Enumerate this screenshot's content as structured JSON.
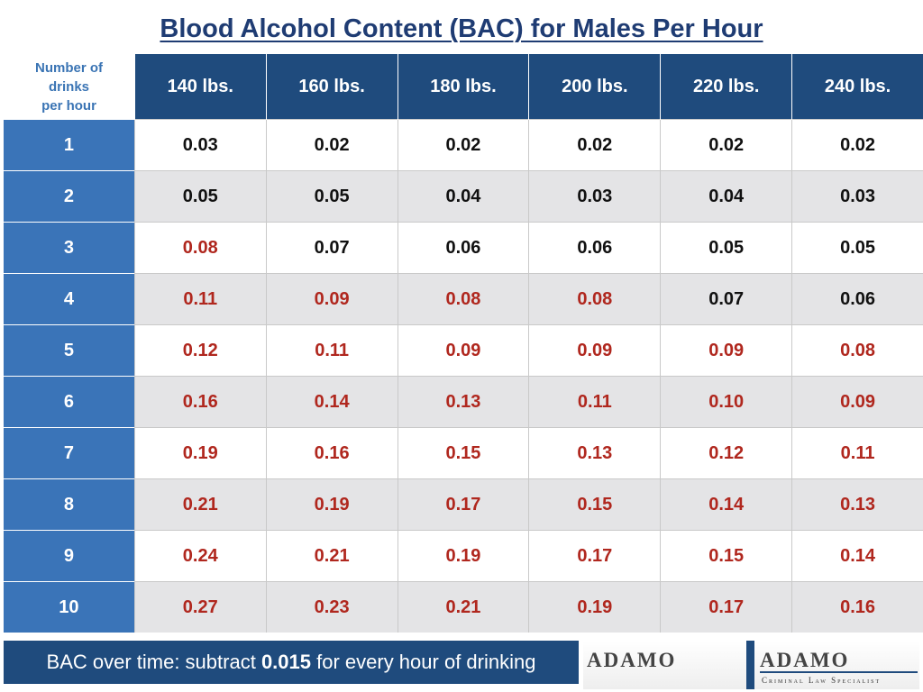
{
  "title": "Blood Alcohol Content (BAC) for Males Per Hour",
  "corner_label": "Number of\ndrinks\nper hour",
  "columns": [
    "140 lbs.",
    "160 lbs.",
    "180 lbs.",
    "200 lbs.",
    "220 lbs.",
    "240 lbs."
  ],
  "rows": [
    {
      "drinks": "1",
      "values": [
        "0.03",
        "0.02",
        "0.02",
        "0.02",
        "0.02",
        "0.02"
      ]
    },
    {
      "drinks": "2",
      "values": [
        "0.05",
        "0.05",
        "0.04",
        "0.03",
        "0.04",
        "0.03"
      ]
    },
    {
      "drinks": "3",
      "values": [
        "0.08",
        "0.07",
        "0.06",
        "0.06",
        "0.05",
        "0.05"
      ]
    },
    {
      "drinks": "4",
      "values": [
        "0.11",
        "0.09",
        "0.08",
        "0.08",
        "0.07",
        "0.06"
      ]
    },
    {
      "drinks": "5",
      "values": [
        "0.12",
        "0.11",
        "0.09",
        "0.09",
        "0.09",
        "0.08"
      ]
    },
    {
      "drinks": "6",
      "values": [
        "0.16",
        "0.14",
        "0.13",
        "0.11",
        "0.10",
        "0.09"
      ]
    },
    {
      "drinks": "7",
      "values": [
        "0.19",
        "0.16",
        "0.15",
        "0.13",
        "0.12",
        "0.11"
      ]
    },
    {
      "drinks": "8",
      "values": [
        "0.21",
        "0.19",
        "0.17",
        "0.15",
        "0.14",
        "0.13"
      ]
    },
    {
      "drinks": "9",
      "values": [
        "0.24",
        "0.21",
        "0.19",
        "0.17",
        "0.15",
        "0.14"
      ]
    },
    {
      "drinks": "10",
      "values": [
        "0.27",
        "0.23",
        "0.21",
        "0.19",
        "0.17",
        "0.16"
      ]
    }
  ],
  "highlight_threshold": 0.08,
  "colors": {
    "header_dark": "#1f4b7d",
    "row_header": "#3a74b8",
    "over_limit": "#b0271e",
    "normal": "#111111",
    "title": "#1f3c73"
  },
  "footer": {
    "text_before": "BAC over time: subtract ",
    "text_bold": "0.015",
    "text_after": " for every hour of drinking"
  },
  "logo": {
    "word_left": "ADAMO",
    "word_right": "ADAMO",
    "tagline": "Criminal Law Specialist"
  }
}
